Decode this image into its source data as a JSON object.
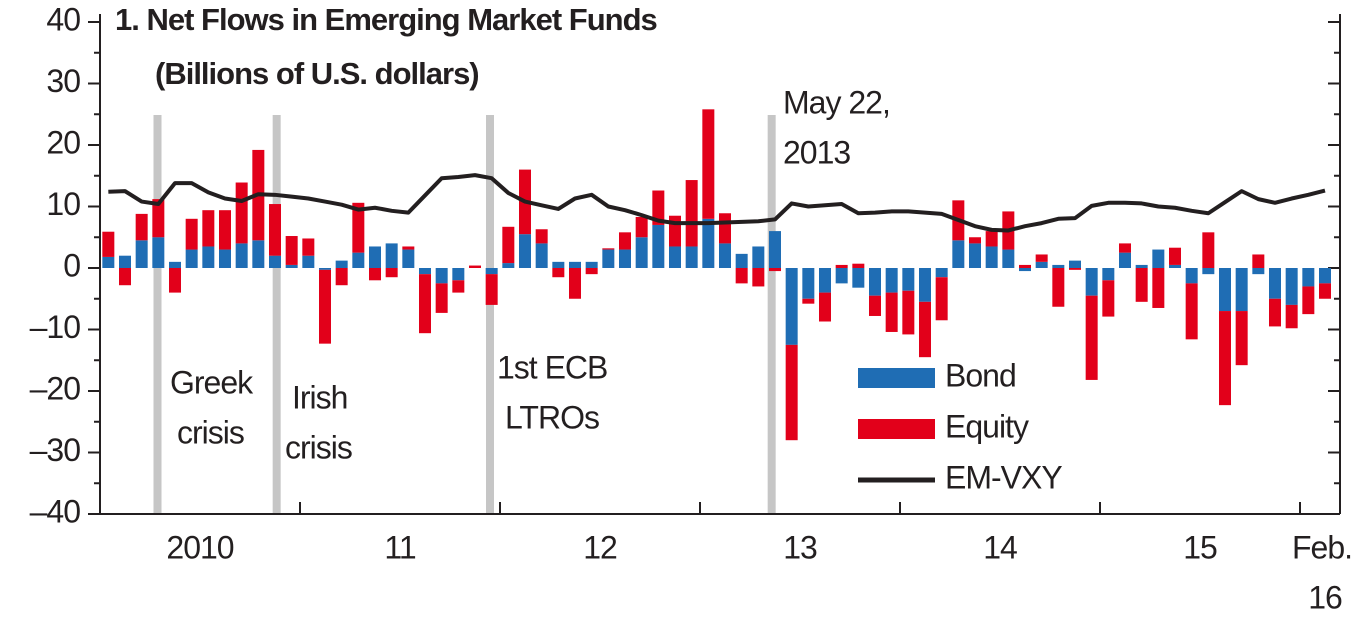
{
  "chart_data": {
    "type": "bar",
    "stacked": true,
    "title": "1. Net Flows in Emerging Market Funds",
    "subtitle": "(Billions of U.S. dollars)",
    "categories": [
      null,
      null,
      null,
      null,
      null,
      null,
      null,
      null,
      null,
      null,
      null,
      null,
      null,
      null,
      null,
      null,
      null,
      null,
      null,
      null,
      null,
      null,
      null,
      null,
      null,
      null,
      null,
      null,
      null,
      null,
      null,
      null,
      null,
      null,
      null,
      null,
      null,
      null,
      null,
      null,
      null,
      null,
      null,
      null,
      null,
      null,
      null,
      null,
      null,
      null,
      null,
      null,
      null,
      null,
      null,
      null,
      null,
      null,
      null,
      null,
      null,
      null,
      null,
      null,
      null,
      null,
      null,
      null,
      null,
      null,
      null,
      null,
      null,
      null
    ],
    "series": [
      {
        "name": "Bond",
        "color": "#1f6db4",
        "values": [
          1.8,
          2,
          4.5,
          5,
          1,
          3,
          3.5,
          3,
          4,
          4.5,
          2,
          0.5,
          2,
          -0.3,
          1.2,
          2.5,
          3.5,
          4,
          3,
          -1,
          -2.5,
          -2,
          0,
          -1,
          0.8,
          5.5,
          4,
          1,
          1,
          1,
          3,
          3,
          5,
          7,
          3.5,
          3.5,
          8,
          4,
          2.3,
          3.5,
          6,
          -12.5,
          -5,
          -4,
          -2.5,
          -3.2,
          -4.5,
          -4,
          -3.7,
          -5.5,
          -1.5,
          4.5,
          4,
          3.5,
          3,
          -0.5,
          1,
          0.5,
          1.2,
          -4.5,
          -2,
          2.5,
          0.5,
          3,
          0.5,
          -2.5,
          -1,
          -7,
          -7,
          -1,
          -5,
          -6,
          -3,
          -2.5
        ]
      },
      {
        "name": "Equity",
        "color": "#e2001a",
        "values": [
          4.1,
          -2.8,
          4.3,
          6.2,
          -4,
          5,
          5.9,
          6.4,
          9.9,
          14.7,
          8.4,
          4.7,
          2.8,
          -12,
          -2.8,
          8.1,
          -2,
          -1.5,
          0.5,
          -9.6,
          -4.8,
          -2,
          0.4,
          -5,
          5.9,
          10.5,
          2.3,
          -1.5,
          -5,
          -1,
          0.2,
          2.8,
          3.3,
          5.6,
          5,
          10.8,
          17.8,
          4.9,
          -2.5,
          -3,
          -0.5,
          -15.5,
          -0.8,
          -4.7,
          0.5,
          0.7,
          -3.3,
          -6.4,
          -7.1,
          -9,
          -7,
          6.5,
          1,
          2.5,
          6.2,
          0.5,
          1.2,
          -6.3,
          -0.3,
          -13.7,
          -5.9,
          1.5,
          -5.5,
          -6.5,
          2.8,
          -9.1,
          5.8,
          -15.3,
          -8.8,
          2.2,
          -4.5,
          -3.8,
          -4.5,
          -2.5
        ]
      },
      {
        "name": "EM-VXY",
        "type": "line",
        "color": "#231f20",
        "values": [
          12.4,
          12.5,
          10.8,
          10.4,
          13.8,
          13.8,
          12.3,
          11.3,
          10.9,
          12,
          11.9,
          11.6,
          11.3,
          10.8,
          10.3,
          9.5,
          9.8,
          9.3,
          9,
          11.8,
          14.6,
          14.8,
          15.1,
          14.6,
          12.2,
          10.8,
          10.2,
          9.6,
          11.3,
          11.9,
          10,
          9.4,
          8.6,
          7.7,
          7.3,
          7.3,
          7.3,
          7.4,
          7.5,
          7.6,
          7.9,
          10.5,
          10,
          10.2,
          10.4,
          8.9,
          9,
          9.2,
          9.2,
          9,
          8.8,
          7.8,
          6.8,
          6.2,
          6.1,
          6.8,
          7.3,
          8,
          8.1,
          10.1,
          10.6,
          10.6,
          10.5,
          10,
          9.8,
          9.3,
          8.9,
          10.7,
          12.5,
          11.2,
          10.6,
          11.3,
          11.9,
          12.6
        ]
      }
    ],
    "ylim": [
      -40,
      40
    ],
    "yticks": [
      40,
      30,
      20,
      10,
      0,
      {
        "value": -10,
        "label": "–10"
      },
      {
        "value": -20,
        "label": "–20"
      },
      {
        "value": -30,
        "label": "–30"
      },
      {
        "value": -40,
        "label": "–40"
      }
    ],
    "x_labels": [
      "2010",
      "11",
      "12",
      "13",
      "14",
      "15"
    ],
    "x_end_label": [
      "Feb.",
      "16"
    ],
    "annotations": [
      {
        "text": [
          "Greek",
          "crisis"
        ],
        "x": 2.95
      },
      {
        "text": [
          "Irish",
          "crisis"
        ],
        "x": 10.1
      },
      {
        "text": [
          "1st ECB",
          "LTROs"
        ],
        "x": 22.9
      },
      {
        "text": [
          "May 22,",
          "2013"
        ],
        "x": 39.8
      }
    ],
    "legend": "lower right"
  }
}
